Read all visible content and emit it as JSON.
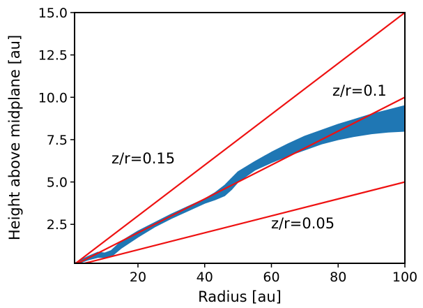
{
  "chart_data": {
    "type": "line",
    "title": "",
    "xlabel": "Radius [au]",
    "ylabel": "Height above midplane [au]",
    "xlim": [
      1,
      100
    ],
    "ylim": [
      0.2,
      15.0
    ],
    "x_ticks": [
      20,
      40,
      60,
      80,
      100
    ],
    "x_tick_labels": [
      "20",
      "40",
      "60",
      "80",
      "100"
    ],
    "y_ticks": [
      2.5,
      5.0,
      7.5,
      10.0,
      12.5,
      15.0
    ],
    "y_tick_labels": [
      "2.5",
      "5.0",
      "7.5",
      "10.0",
      "12.5",
      "15.0"
    ],
    "grid": false,
    "legend": "none",
    "reference_lines": [
      {
        "label": "z/r=0.15",
        "slope": 0.15,
        "color": "#ee1111"
      },
      {
        "label": "z/r=0.1",
        "slope": 0.1,
        "color": "#ee1111"
      },
      {
        "label": "z/r=0.05",
        "slope": 0.05,
        "color": "#ee1111"
      }
    ],
    "surface_band": {
      "color": "#1f77b4",
      "x": [
        1,
        5,
        8,
        10,
        12,
        15,
        20,
        25,
        30,
        35,
        40,
        43,
        46,
        48,
        50,
        55,
        60,
        65,
        70,
        75,
        80,
        85,
        90,
        95,
        100
      ],
      "upper": [
        0.2,
        0.6,
        0.85,
        0.8,
        0.95,
        1.5,
        2.1,
        2.6,
        3.1,
        3.55,
        4.0,
        4.35,
        4.8,
        5.2,
        5.6,
        6.2,
        6.75,
        7.25,
        7.7,
        8.05,
        8.4,
        8.7,
        9.0,
        9.25,
        9.5
      ],
      "lower": [
        0.1,
        0.4,
        0.55,
        0.55,
        0.6,
        1.1,
        1.75,
        2.35,
        2.85,
        3.3,
        3.75,
        3.95,
        4.2,
        4.55,
        5.0,
        5.7,
        6.15,
        6.55,
        6.9,
        7.25,
        7.5,
        7.7,
        7.85,
        7.95,
        8.0
      ]
    }
  },
  "annotations": {
    "z015": "z/r=0.15",
    "z010": "z/r=0.1",
    "z005": "z/r=0.05"
  }
}
